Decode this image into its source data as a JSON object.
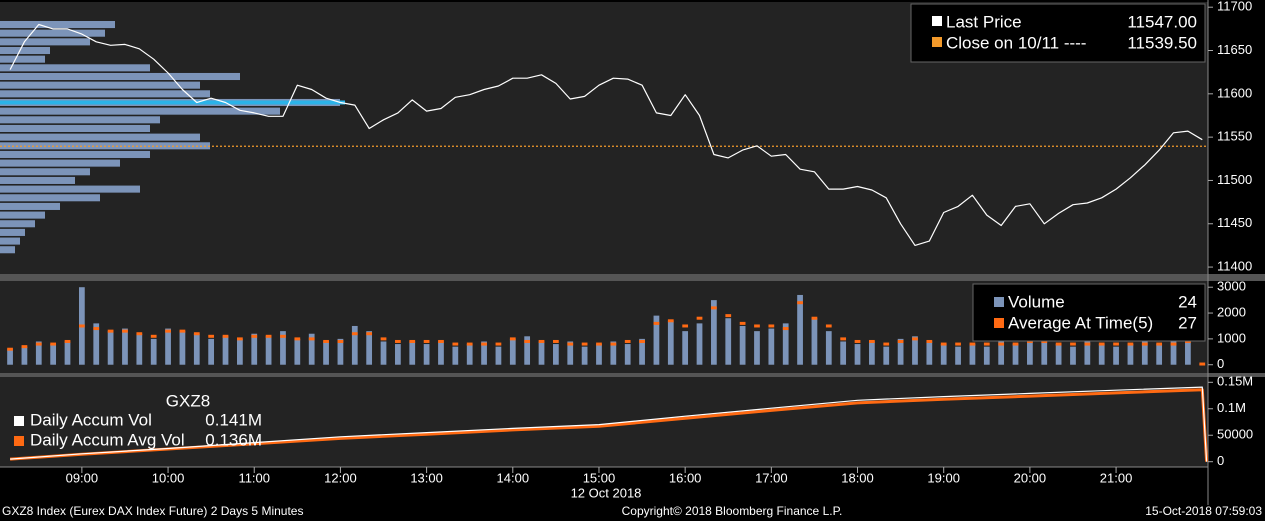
{
  "chart_data": [
    {
      "type": "line",
      "x": [
        "08:10",
        "08:20",
        "08:30",
        "08:40",
        "08:50",
        "09:00",
        "09:10",
        "09:20",
        "09:30",
        "09:40",
        "09:50",
        "10:00",
        "10:10",
        "10:20",
        "10:30",
        "10:40",
        "10:50",
        "11:00",
        "11:10",
        "11:20",
        "11:30",
        "11:40",
        "11:50",
        "12:00",
        "12:10",
        "12:20",
        "12:30",
        "12:40",
        "12:50",
        "13:00",
        "13:10",
        "13:20",
        "13:30",
        "13:40",
        "13:50",
        "14:00",
        "14:10",
        "14:20",
        "14:30",
        "14:40",
        "14:50",
        "15:00",
        "15:10",
        "15:20",
        "15:30",
        "15:40",
        "15:50",
        "16:00",
        "16:10",
        "16:20",
        "16:30",
        "16:40",
        "16:50",
        "17:00",
        "17:10",
        "17:20",
        "17:30",
        "17:40",
        "17:50",
        "18:00",
        "18:10",
        "18:20",
        "18:30",
        "18:40",
        "18:50",
        "19:00",
        "19:10",
        "19:20",
        "19:30",
        "19:40",
        "19:50",
        "20:00",
        "20:10",
        "20:20",
        "20:30",
        "20:40",
        "20:50",
        "21:00",
        "21:10",
        "21:20",
        "21:30",
        "21:40",
        "21:50",
        "22:00"
      ],
      "series": [
        {
          "name": "Last Price",
          "color": "#ffffff",
          "legend_value": "11547.00",
          "values": [
            11628,
            11660,
            11680,
            11675,
            11675,
            11669,
            11660,
            11656,
            11657,
            11652,
            11640,
            11624,
            11605,
            11590,
            11595,
            11590,
            11581,
            11578,
            11574,
            11574,
            11610,
            11605,
            11595,
            11590,
            11587,
            11560,
            11570,
            11578,
            11593,
            11580,
            11583,
            11596,
            11599,
            11605,
            11609,
            11618,
            11618,
            11622,
            11612,
            11594,
            11597,
            11610,
            11618,
            11617,
            11610,
            11578,
            11575,
            11599,
            11575,
            11530,
            11526,
            11535,
            11540,
            11528,
            11530,
            11513,
            11510,
            11490,
            11490,
            11493,
            11489,
            11480,
            11450,
            11425,
            11430,
            11463,
            11470,
            11483,
            11460,
            11448,
            11470,
            11473,
            11450,
            11462,
            11472,
            11474,
            11480,
            11490,
            11503,
            11518,
            11535,
            11555,
            11557,
            11547
          ]
        }
      ],
      "reference_lines": [
        {
          "name": "Close on 10/11 ----",
          "value": 11539.5,
          "color": "#f39a2b",
          "legend_value": "11539.50"
        }
      ],
      "profile": {
        "prices": [
          11680,
          11670,
          11660,
          11650,
          11640,
          11630,
          11620,
          11610,
          11600,
          11590,
          11580,
          11570,
          11560,
          11550,
          11540,
          11530,
          11520,
          11510,
          11500,
          11490,
          11480,
          11470,
          11460,
          11450,
          11440,
          11430,
          11420
        ],
        "values": [
          115,
          105,
          90,
          50,
          45,
          150,
          240,
          200,
          210,
          340,
          280,
          160,
          150,
          200,
          210,
          150,
          120,
          90,
          75,
          140,
          100,
          60,
          45,
          35,
          25,
          20,
          15
        ],
        "xlim": [
          0,
          1208
        ],
        "color": "#7c94b9",
        "poc": 11590,
        "poc_color": "#2bb3e8"
      },
      "ylim": [
        11392,
        11706
      ],
      "yticks": [
        11400,
        11450,
        11500,
        11550,
        11600,
        11650,
        11700
      ]
    },
    {
      "type": "bar",
      "series": [
        {
          "name": "Volume",
          "color": "#7c94b9",
          "values": [
            600,
            700,
            900,
            800,
            900,
            3000,
            1600,
            1300,
            1400,
            1200,
            1000,
            1400,
            1300,
            1200,
            1000,
            1100,
            1000,
            1200,
            1100,
            1300,
            1000,
            1200,
            900,
            1000,
            1500,
            1300,
            900,
            800,
            900,
            800,
            900,
            700,
            800,
            900,
            700,
            1000,
            1100,
            900,
            800,
            900,
            700,
            800,
            900,
            800,
            1000,
            1900,
            1700,
            1300,
            1600,
            2500,
            1800,
            1500,
            1300,
            1400,
            1600,
            2700,
            1800,
            1300,
            900,
            800,
            900,
            700,
            1000,
            1100,
            900,
            800,
            700,
            800,
            700,
            900,
            800,
            900,
            1000,
            800,
            700,
            900,
            800,
            700,
            800,
            900,
            800,
            900,
            1000,
            24
          ]
        },
        {
          "name": "Average At Time(5)",
          "color": "#ff6a13",
          "values": [
            600,
            700,
            800,
            800,
            900,
            1500,
            1400,
            1300,
            1300,
            1200,
            1100,
            1300,
            1300,
            1200,
            1100,
            1100,
            1000,
            1100,
            1100,
            1100,
            1000,
            1000,
            900,
            900,
            1200,
            1200,
            1000,
            900,
            900,
            900,
            900,
            800,
            800,
            800,
            800,
            1000,
            900,
            900,
            900,
            800,
            800,
            800,
            800,
            900,
            900,
            1600,
            1700,
            1500,
            1800,
            2200,
            1900,
            1600,
            1500,
            1500,
            1400,
            2400,
            1800,
            1500,
            1000,
            900,
            900,
            800,
            900,
            1000,
            900,
            800,
            800,
            800,
            800,
            800,
            800,
            900,
            900,
            800,
            800,
            800,
            800,
            800,
            800,
            800,
            800,
            800,
            900,
            27
          ]
        }
      ],
      "ylim": [
        -320,
        3240
      ],
      "yticks": [
        0,
        1000,
        2000,
        3000
      ]
    },
    {
      "type": "line",
      "title": "GXZ8",
      "x": [
        "08:10",
        "09:00",
        "10:00",
        "11:00",
        "12:00",
        "13:00",
        "14:00",
        "15:00",
        "16:00",
        "17:00",
        "18:00",
        "19:00",
        "20:00",
        "21:00",
        "22:00",
        "22:03"
      ],
      "series": [
        {
          "name": "Daily Accum Vol",
          "color": "#ffffff",
          "legend_value": "0.141M",
          "values": [
            5000,
            15000,
            25000,
            36000,
            47000,
            55000,
            63000,
            70000,
            86000,
            101000,
            116000,
            123000,
            129000,
            135000,
            141000,
            0
          ]
        },
        {
          "name": "Daily Accum Avg Vol",
          "color": "#ff6a13",
          "legend_value": "0.136M",
          "values": [
            5000,
            14000,
            24000,
            34000,
            44000,
            52000,
            60000,
            67000,
            82000,
            97000,
            111000,
            118000,
            124000,
            130000,
            136000,
            0
          ]
        }
      ],
      "ylim": [
        -10000,
        160000
      ],
      "yticks": [
        0,
        50000,
        {
          "value": 100000,
          "label": "0.1M"
        },
        {
          "value": 150000,
          "label": "0.15M"
        }
      ]
    }
  ],
  "x_axis": {
    "xlim": [
      "08:03",
      "22:04"
    ],
    "xticks": [
      "09:00",
      "10:00",
      "11:00",
      "12:00",
      "13:00",
      "14:00",
      "15:00",
      "16:00",
      "17:00",
      "18:00",
      "19:00",
      "20:00",
      "21:00"
    ],
    "date_label": "12 Oct 2018"
  },
  "footer": {
    "left": "GXZ8 Index (Eurex DAX Index Future) 2 Days 5 Minutes",
    "center": "Copyright© 2018 Bloomberg Finance L.P.",
    "right": "15-Oct-2018 07:59:03"
  }
}
